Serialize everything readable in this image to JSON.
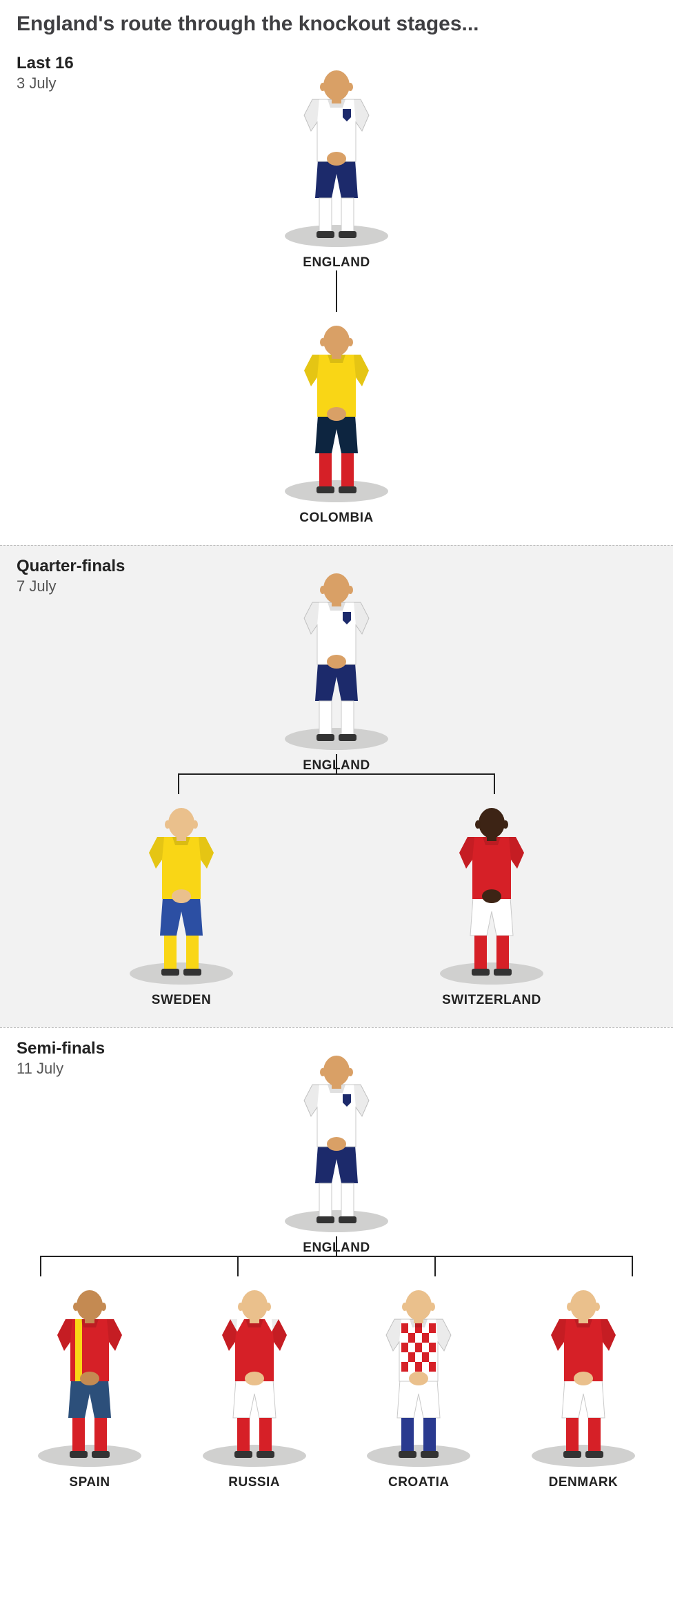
{
  "title": "England's route through the knockout stages...",
  "colors": {
    "text": "#3f3f42",
    "line": "#222222",
    "shadow": "#d0d0cf",
    "shaded_bg": "#f2f2f2",
    "skin_light": "#d9a066",
    "skin_dark": "#5b3a23"
  },
  "stages": [
    {
      "name": "Last 16",
      "date": "3 July",
      "shaded": false,
      "top": {
        "label": "ENGLAND",
        "shirt": "#ffffff",
        "shorts": "#1c2a6b",
        "socks": "#ffffff",
        "skin": "#d9a066",
        "badge": "#1c2a6b"
      },
      "bottom": [
        {
          "label": "COLOMBIA",
          "shirt": "#f9d616",
          "shorts": "#0d2540",
          "socks": "#d62027",
          "skin": "#d9a066"
        }
      ]
    },
    {
      "name": "Quarter-finals",
      "date": "7 July",
      "shaded": true,
      "top": {
        "label": "ENGLAND",
        "shirt": "#ffffff",
        "shorts": "#1c2a6b",
        "socks": "#ffffff",
        "skin": "#d9a066",
        "badge": "#1c2a6b"
      },
      "bottom": [
        {
          "label": "SWEDEN",
          "shirt": "#f9d616",
          "shorts": "#2c4fa3",
          "socks": "#f9d616",
          "skin": "#eac08c"
        },
        {
          "label": "SWITZERLAND",
          "shirt": "#d62027",
          "shorts": "#ffffff",
          "socks": "#d62027",
          "skin": "#3d2415"
        }
      ]
    },
    {
      "name": "Semi-finals",
      "date": "11 July",
      "shaded": false,
      "top": {
        "label": "ENGLAND",
        "shirt": "#ffffff",
        "shorts": "#1c2a6b",
        "socks": "#ffffff",
        "skin": "#d9a066",
        "badge": "#1c2a6b"
      },
      "bottom": [
        {
          "label": "SPAIN",
          "shirt": "#d62027",
          "shorts": "#2c4f7a",
          "socks": "#d62027",
          "skin": "#c48a52",
          "stripe": "#f9d616"
        },
        {
          "label": "RUSSIA",
          "shirt": "#d62027",
          "shorts": "#ffffff",
          "socks": "#d62027",
          "skin": "#eac08c",
          "shoulder": "#ffffff"
        },
        {
          "label": "CROATIA",
          "shirt": "#ffffff",
          "shorts": "#ffffff",
          "socks": "#2a3a8f",
          "skin": "#eac08c",
          "checker": "#d62027"
        },
        {
          "label": "DENMARK",
          "shirt": "#d62027",
          "shorts": "#ffffff",
          "socks": "#d62027",
          "skin": "#eac08c"
        }
      ]
    }
  ]
}
